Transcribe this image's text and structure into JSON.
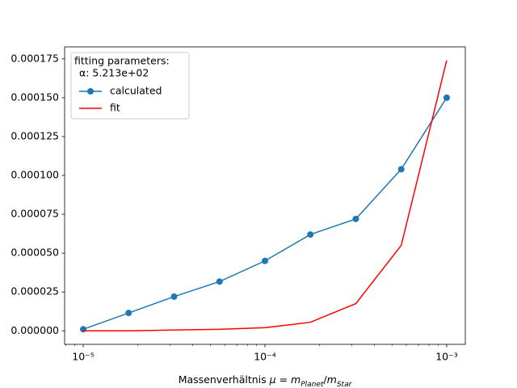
{
  "chart_data": {
    "type": "line",
    "x_label": [
      {
        "text": "Massenverhältnis "
      },
      {
        "text": "μ",
        "italic": true
      },
      {
        "text": " = "
      },
      {
        "text": "m",
        "italic": true
      },
      {
        "text": "Planet",
        "sub": true,
        "italic": true
      },
      {
        "text": "/"
      },
      {
        "text": "m",
        "italic": true
      },
      {
        "text": "Star",
        "sub": true,
        "italic": true
      }
    ],
    "x_scale": "log",
    "x": [
      1e-05,
      1.778e-05,
      3.162e-05,
      5.623e-05,
      0.0001,
      0.0001778,
      0.0003162,
      0.0005623,
      0.001
    ],
    "series": [
      {
        "name": "calculated",
        "color": "#1f77b4",
        "marker": "circle",
        "values": [
          1e-06,
          1.15e-05,
          2.2e-05,
          3.17e-05,
          4.5e-05,
          6.2e-05,
          7.2e-05,
          0.000104,
          0.00015
        ]
      },
      {
        "name": "fit",
        "color": "#ff0000",
        "marker": "none",
        "values": [
          0,
          0,
          5e-07,
          1e-06,
          2e-06,
          5.5e-06,
          1.75e-05,
          5.5e-05,
          0.000174
        ]
      }
    ],
    "xlim": [
      7.9e-06,
      0.001266
    ],
    "ylim": [
      -8.7e-06,
      0.0001827
    ],
    "xticks": [
      {
        "value": 1e-05,
        "label": "10⁻⁵"
      },
      {
        "value": 0.0001,
        "label": "10⁻⁴"
      },
      {
        "value": 0.001,
        "label": "10⁻³"
      }
    ],
    "xminorticks": [
      8e-06,
      9e-06,
      2e-05,
      3e-05,
      4e-05,
      5e-05,
      6e-05,
      7e-05,
      8e-05,
      9e-05,
      0.0002,
      0.0003,
      0.0004,
      0.0005,
      0.0006,
      0.0007,
      0.0008,
      0.0009
    ],
    "yticks": [
      {
        "value": 0,
        "label": "0.000000"
      },
      {
        "value": 2.5e-05,
        "label": "0.000025"
      },
      {
        "value": 5e-05,
        "label": "0.000050"
      },
      {
        "value": 7.5e-05,
        "label": "0.000075"
      },
      {
        "value": 0.0001,
        "label": "0.000100"
      },
      {
        "value": 0.000125,
        "label": "0.000125"
      },
      {
        "value": 0.00015,
        "label": "0.000150"
      },
      {
        "value": 0.000175,
        "label": "0.000175"
      }
    ],
    "grid": false,
    "legend_title": [
      "fitting parameters:",
      "α: 5.213e+02"
    ],
    "legend_position": "upper left"
  }
}
